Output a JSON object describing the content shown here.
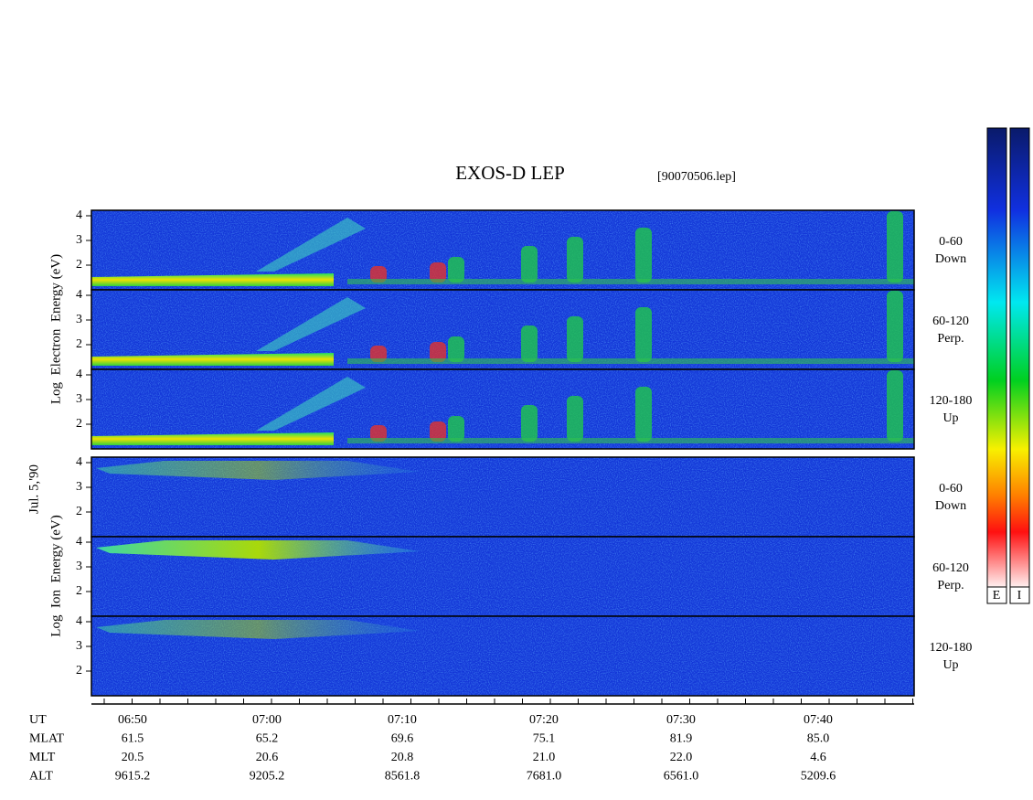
{
  "header": {
    "title": "EXOS-D LEP",
    "file": "[90070506.lep]",
    "date": "Jul. 5,'90"
  },
  "axes": {
    "electron_label": "Log  Electron  Energy (eV)",
    "ion_label": "Log  Ion  Energy (eV)",
    "energy_ticks": [
      4,
      3,
      2
    ]
  },
  "panels": [
    {
      "species": "electron",
      "angle": "0-60",
      "direction": "Down"
    },
    {
      "species": "electron",
      "angle": "60-120",
      "direction": "Perp."
    },
    {
      "species": "electron",
      "angle": "120-180",
      "direction": "Up"
    },
    {
      "species": "ion",
      "angle": "0-60",
      "direction": "Down"
    },
    {
      "species": "ion",
      "angle": "60-120",
      "direction": "Perp."
    },
    {
      "species": "ion",
      "angle": "120-180",
      "direction": "Up"
    }
  ],
  "time_axis": {
    "rows": [
      {
        "name": "UT",
        "values": [
          "06:50",
          "07:00",
          "07:10",
          "07:20",
          "07:30",
          "07:40"
        ]
      },
      {
        "name": "MLAT",
        "values": [
          "61.5",
          "65.2",
          "69.6",
          "75.1",
          "81.9",
          "85.0"
        ]
      },
      {
        "name": "MLT",
        "values": [
          "20.5",
          "20.6",
          "20.8",
          "21.0",
          "22.0",
          "4.6"
        ]
      },
      {
        "name": "ALT",
        "values": [
          "9615.2",
          "9205.2",
          "8561.8",
          "7681.0",
          "6561.0",
          "5209.6"
        ]
      }
    ]
  },
  "colorbar": {
    "labels": [
      "E",
      "I"
    ]
  }
}
